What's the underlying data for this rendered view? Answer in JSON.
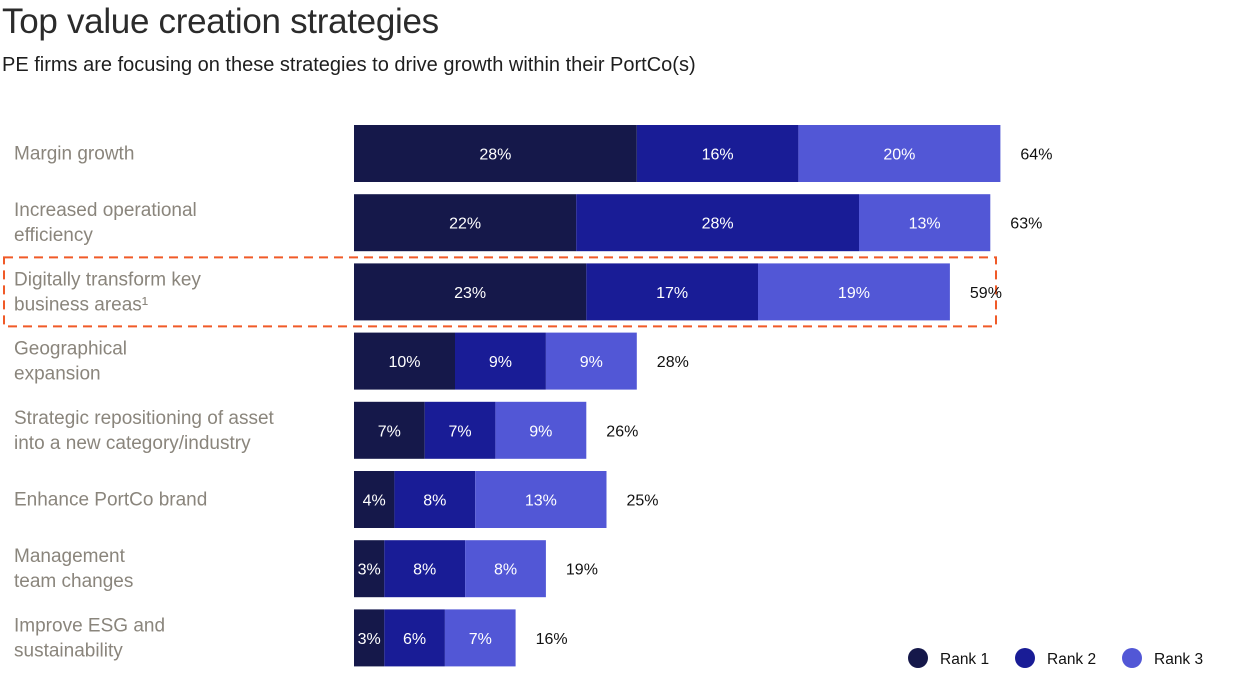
{
  "header": {
    "title": "Top value creation strategies",
    "subtitle": "PE firms are focusing on these strategies to drive growth within their PortCo(s)"
  },
  "chart_data": {
    "type": "bar",
    "orientation": "horizontal",
    "stacked": true,
    "title": "Top value creation strategies",
    "subtitle": "PE firms are focusing on these strategies to drive growth within their PortCo(s)",
    "xlabel": "",
    "ylabel": "",
    "grid": false,
    "legend_position": "bottom-right",
    "categories": [
      [
        "Margin growth"
      ],
      [
        "Increased operational",
        "efficiency"
      ],
      [
        "Digitally transform key",
        "business areas¹"
      ],
      [
        "Geographical",
        "expansion"
      ],
      [
        "Strategic repositioning of asset",
        "into a new category/industry"
      ],
      [
        "Enhance PortCo brand"
      ],
      [
        "Management",
        "team changes"
      ],
      [
        "Improve ESG and",
        "sustainability"
      ]
    ],
    "series": [
      {
        "name": "Rank 1",
        "color": "#15184a",
        "values": [
          28,
          22,
          23,
          10,
          7,
          4,
          3,
          3
        ]
      },
      {
        "name": "Rank 2",
        "color": "#191c96",
        "values": [
          16,
          28,
          17,
          9,
          7,
          8,
          8,
          6
        ]
      },
      {
        "name": "Rank 3",
        "color": "#5257d6",
        "values": [
          20,
          13,
          19,
          9,
          9,
          13,
          8,
          7
        ]
      }
    ],
    "totals": [
      64,
      63,
      59,
      28,
      26,
      25,
      19,
      16
    ],
    "value_suffix": "%",
    "highlighted_category_index": 2,
    "highlight_color": "#f05a28"
  }
}
